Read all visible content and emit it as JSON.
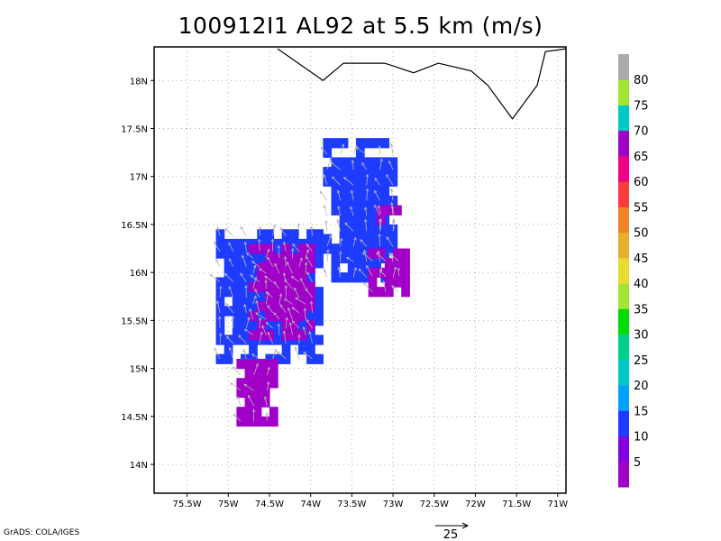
{
  "title": "100912I1 AL92 at 5.5 km (m/s)",
  "credit": "GrADS: COLA/IGES",
  "map": {
    "lon_range": [
      -75.9,
      -70.9
    ],
    "lat_range": [
      13.7,
      18.35
    ],
    "lon_ticks": [
      {
        "value": -75.5,
        "label": "75.5W"
      },
      {
        "value": -75,
        "label": "75W"
      },
      {
        "value": -74.5,
        "label": "74.5W"
      },
      {
        "value": -74,
        "label": "74W"
      },
      {
        "value": -73.5,
        "label": "73.5W"
      },
      {
        "value": -73,
        "label": "73W"
      },
      {
        "value": -72.5,
        "label": "72.5W"
      },
      {
        "value": -72,
        "label": "72W"
      },
      {
        "value": -71.5,
        "label": "71.5W"
      },
      {
        "value": -71,
        "label": "71W"
      }
    ],
    "lat_ticks": [
      {
        "value": 14,
        "label": "14N"
      },
      {
        "value": 14.5,
        "label": "14.5N"
      },
      {
        "value": 15,
        "label": "15N"
      },
      {
        "value": 15.5,
        "label": "15.5N"
      },
      {
        "value": 16,
        "label": "16N"
      },
      {
        "value": 16.5,
        "label": "16.5N"
      },
      {
        "value": 17,
        "label": "17N"
      },
      {
        "value": 17.5,
        "label": "17.5N"
      },
      {
        "value": 18,
        "label": "18N"
      }
    ],
    "gridlines": "dotted",
    "coastline": [
      [
        -74.4,
        18.33
      ],
      [
        -73.85,
        18.0
      ],
      [
        -73.6,
        18.18
      ],
      [
        -73.1,
        18.18
      ],
      [
        -72.75,
        18.08
      ],
      [
        -72.45,
        18.18
      ],
      [
        -72.05,
        18.1
      ],
      [
        -71.85,
        17.95
      ],
      [
        -71.55,
        17.6
      ],
      [
        -71.25,
        17.95
      ],
      [
        -71.15,
        18.3
      ],
      [
        -70.9,
        18.33
      ]
    ],
    "wind_fields": {
      "blue_regions": [
        {
          "lat_range": [
            15.05,
            16.45
          ],
          "lon_range": [
            -75.15,
            -73.85
          ]
        },
        {
          "lat_range": [
            15.9,
            17.35
          ],
          "lon_range": [
            -73.85,
            -72.95
          ]
        }
      ],
      "purple_regions": [
        {
          "lat_range": [
            15.3,
            16.25
          ],
          "lon_range": [
            -74.75,
            -74.0
          ]
        },
        {
          "lat_range": [
            14.4,
            15.05
          ],
          "lon_range": [
            -74.9,
            -74.4
          ]
        },
        {
          "lat_range": [
            15.75,
            16.2
          ],
          "lon_range": [
            -73.3,
            -72.8
          ]
        },
        {
          "lat_range": [
            16.4,
            16.7
          ],
          "lon_range": [
            -73.2,
            -72.95
          ]
        }
      ]
    },
    "reference_vector": {
      "label": "25"
    }
  },
  "colorbar": {
    "colors": [
      "#a000c8",
      "#8200dc",
      "#1e3cff",
      "#00a0ff",
      "#00c8c8",
      "#00d28c",
      "#00dc00",
      "#a0e632",
      "#e6dc32",
      "#e6af2d",
      "#f08228",
      "#fa3c3c",
      "#f00082",
      "#a000c8",
      "#00c8c8",
      "#a0e632",
      "#aaaaaa"
    ],
    "labels": [
      "5",
      "10",
      "15",
      "20",
      "25",
      "30",
      "35",
      "40",
      "45",
      "50",
      "55",
      "60",
      "65",
      "70",
      "75",
      "80"
    ]
  }
}
